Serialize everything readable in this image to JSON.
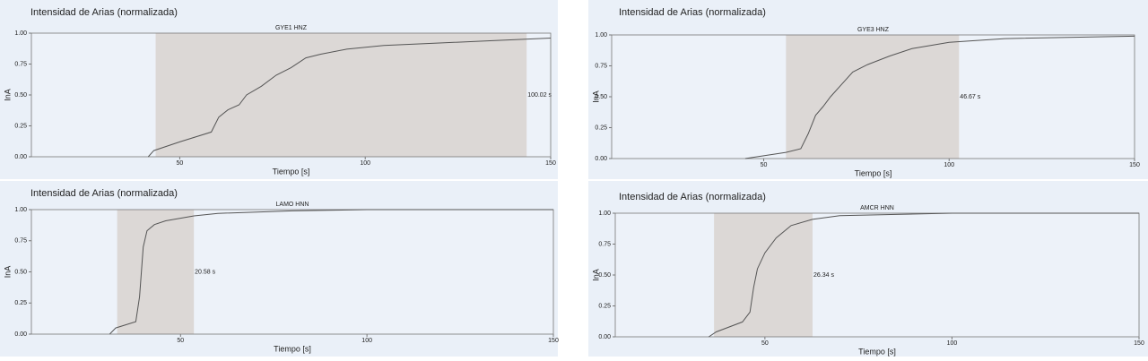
{
  "chart_data": [
    {
      "type": "line",
      "title": "Intensidad de Arias (normalizada)",
      "subtitle": "GYE1 HNZ",
      "xlabel": "Tiempo [s]",
      "ylabel": "InA",
      "x": [
        41.5,
        43,
        50,
        58.5,
        60.5,
        63,
        66,
        68,
        72,
        76,
        80,
        84,
        88,
        95,
        105,
        120,
        135,
        150
      ],
      "values": [
        0,
        0.05,
        0.12,
        0.2,
        0.32,
        0.38,
        0.42,
        0.5,
        0.57,
        0.66,
        0.72,
        0.8,
        0.83,
        0.87,
        0.9,
        0.92,
        0.94,
        0.96
      ],
      "color": "#555555",
      "span": [
        43.5,
        143.52
      ],
      "span_color": "#dcd8d6",
      "annotation": "100.02 s",
      "xlim": [
        10,
        150
      ],
      "xticks": [
        50,
        100,
        150
      ],
      "ylim": [
        0,
        1
      ],
      "yticks": [
        {
          "value": 0,
          "label": "0.00"
        },
        {
          "value": 0.25,
          "label": "0.25"
        },
        {
          "value": 0.5,
          "label": "0.50"
        },
        {
          "value": 0.75,
          "label": "0.75"
        },
        {
          "value": 1,
          "label": "1.00"
        }
      ]
    },
    {
      "type": "line",
      "title": "Intensidad de Arias (normalizada)",
      "subtitle": "GYE3 HNZ",
      "xlabel": "Tiempo [s]",
      "ylabel": "InA",
      "x": [
        45,
        56,
        60,
        62,
        64,
        66,
        68,
        71,
        74,
        78,
        84,
        90,
        100,
        115,
        150
      ],
      "values": [
        0,
        0.05,
        0.08,
        0.2,
        0.35,
        0.42,
        0.5,
        0.6,
        0.7,
        0.76,
        0.83,
        0.89,
        0.94,
        0.97,
        0.99
      ],
      "color": "#555555",
      "span": [
        56,
        102.67
      ],
      "span_color": "#dcd8d6",
      "annotation": "46.67 s",
      "xlim": [
        9,
        150
      ],
      "xticks": [
        50,
        100,
        150
      ],
      "ylim": [
        0,
        1
      ],
      "yticks": [
        {
          "value": 0,
          "label": "0.00"
        },
        {
          "value": 0.25,
          "label": "0.25"
        },
        {
          "value": 0.5,
          "label": "0.50"
        },
        {
          "value": 0.75,
          "label": "0.75"
        },
        {
          "value": 1,
          "label": "1.00"
        }
      ]
    },
    {
      "type": "line",
      "title": "Intensidad de Arias (normalizada)",
      "subtitle": "LAMO HNN",
      "xlabel": "Tiempo [s]",
      "ylabel": "InA",
      "x": [
        31,
        32.6,
        38,
        39,
        40,
        41,
        43,
        46,
        53.6,
        60,
        80,
        100,
        150
      ],
      "values": [
        0,
        0.05,
        0.1,
        0.3,
        0.7,
        0.83,
        0.88,
        0.91,
        0.95,
        0.97,
        0.99,
        1,
        1
      ],
      "color": "#555555",
      "span": [
        33,
        53.58
      ],
      "span_color": "#dcd8d6",
      "annotation": "20.58 s",
      "xlim": [
        10,
        150
      ],
      "xticks": [
        50,
        100,
        150
      ],
      "ylim": [
        0,
        1
      ],
      "yticks": [
        {
          "value": 0,
          "label": "0.00"
        },
        {
          "value": 0.25,
          "label": "0.25"
        },
        {
          "value": 0.5,
          "label": "0.50"
        },
        {
          "value": 0.75,
          "label": "0.75"
        },
        {
          "value": 1,
          "label": "1.00"
        }
      ]
    },
    {
      "type": "line",
      "title": "Intensidad de Arias (normalizada)",
      "subtitle": "AMCR HNN",
      "xlabel": "Tiempo [s]",
      "ylabel": "InA",
      "x": [
        35,
        37,
        44,
        46,
        47,
        48,
        50,
        53,
        57,
        62.7,
        70,
        85,
        100,
        150
      ],
      "values": [
        0,
        0.04,
        0.12,
        0.2,
        0.4,
        0.55,
        0.68,
        0.8,
        0.9,
        0.95,
        0.98,
        0.99,
        1,
        1
      ],
      "color": "#555555",
      "span": [
        36.4,
        62.74
      ],
      "span_color": "#dcd8d6",
      "annotation": "26.34 s",
      "xlim": [
        10,
        150
      ],
      "xticks": [
        50,
        100,
        150
      ],
      "ylim": [
        0,
        1
      ],
      "yticks": [
        {
          "value": 0,
          "label": "0.00"
        },
        {
          "value": 0.25,
          "label": "0.25"
        },
        {
          "value": 0.5,
          "label": "0.50"
        },
        {
          "value": 0.75,
          "label": "0.75"
        },
        {
          "value": 1,
          "label": "1.00"
        }
      ]
    }
  ]
}
